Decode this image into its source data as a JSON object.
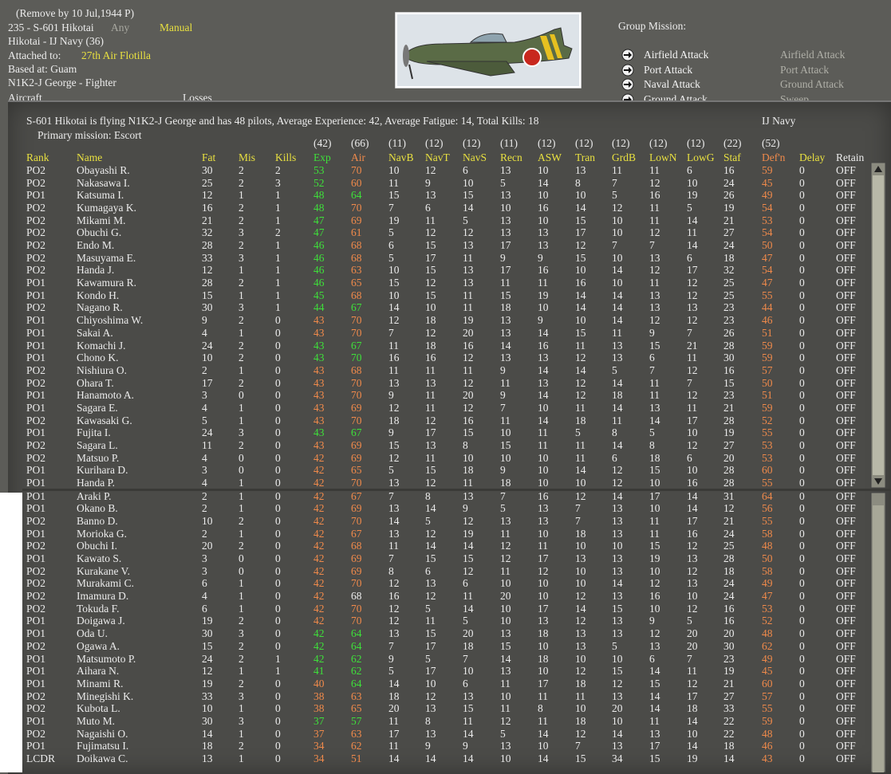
{
  "header": {
    "remove_note": "(Remove by 10 Jul,1944  P)",
    "unit_name": "235 - S-601 Hikotai",
    "mode_any": "Any",
    "mode": "Manual",
    "unit_type": "Hikotai - IJ Navy (36)",
    "attached_label": "Attached to:",
    "attached_value": "27th Air Flotilla",
    "based_at": "Based at: Guam",
    "aircraft": "N1K2-J George - Fighter",
    "aircraft_col": "Aircraft",
    "losses_col": "Losses"
  },
  "group_mission": {
    "title": "Group Mission:",
    "options": [
      "Airfield Attack",
      "Port Attack",
      "Naval Attack",
      "Ground Attack"
    ],
    "alternates": [
      "Airfield Attack",
      "Port Attack",
      "Ground Attack",
      "Sweep"
    ]
  },
  "summary": {
    "text": "S-601 Hikotai is flying N1K2-J George and has 48 pilots,  Average Experience: 42,  Average Fatigue: 14,  Total Kills: 18",
    "nation": "IJ Navy",
    "primary_mission": "Primary mission: Escort"
  },
  "table": {
    "averages": [
      null,
      null,
      null,
      null,
      null,
      "(42)",
      "(66)",
      "(11)",
      "(12)",
      "(12)",
      "(11)",
      "(12)",
      "(12)",
      "(12)",
      "(12)",
      "(12)",
      "(22)",
      "(52)",
      null,
      null
    ],
    "columns": [
      "Rank",
      "Name",
      "Fat",
      "Mis",
      "Kills",
      "Exp",
      "Air",
      "NavB",
      "NavT",
      "NavS",
      "Recn",
      "ASW",
      "Tran",
      "GrdB",
      "LowN",
      "LowG",
      "Staf",
      "Def'n",
      "Delay",
      "Retain"
    ],
    "palette": {
      "g": "#3ee03a",
      "o": "#f08a4b",
      "w": "#ececec",
      "y": "#e8e040"
    },
    "column_colors": [
      "y",
      "y",
      "y",
      "y",
      "y",
      "g",
      "o",
      "y",
      "y",
      "y",
      "y",
      "y",
      "y",
      "y",
      "y",
      "y",
      "y",
      "o",
      "y",
      "w"
    ],
    "exp_colors": [
      "g",
      "g",
      "g",
      "g",
      "g",
      "g",
      "g",
      "g",
      "g",
      "g",
      "g",
      "g",
      "o",
      "o",
      "g",
      "g",
      "o",
      "o",
      "o",
      "o",
      "o",
      "g",
      "o",
      "o",
      "o",
      "o",
      "o",
      "o",
      "o",
      "o",
      "o",
      "o",
      "o",
      "o",
      "o",
      "o",
      "o",
      "g",
      "g",
      "g",
      "g",
      "o",
      "o",
      "o",
      "g",
      "o",
      "o",
      "o"
    ],
    "air_colors": [
      "o",
      "o",
      "g",
      "o",
      "o",
      "o",
      "o",
      "o",
      "o",
      "o",
      "o",
      "g",
      "o",
      "o",
      "g",
      "g",
      "o",
      "o",
      "o",
      "o",
      "o",
      "g",
      "o",
      "o",
      "o",
      "o",
      "o",
      "o",
      "o",
      "o",
      "o",
      "o",
      "o",
      "o",
      "w",
      "o",
      "o",
      "g",
      "g",
      "g",
      "g",
      "g",
      "o",
      "o",
      "g",
      "o",
      "o",
      "o"
    ],
    "defn_color": "o",
    "rows": [
      [
        "PO2",
        "Obayashi R.",
        30,
        2,
        2,
        53,
        70,
        10,
        12,
        6,
        13,
        10,
        13,
        11,
        11,
        6,
        16,
        59,
        0,
        "OFF"
      ],
      [
        "PO2",
        "Nakasawa I.",
        25,
        2,
        3,
        52,
        60,
        11,
        9,
        10,
        5,
        14,
        8,
        7,
        12,
        10,
        24,
        45,
        0,
        "OFF"
      ],
      [
        "PO1",
        "Katsuma I.",
        12,
        1,
        1,
        48,
        64,
        15,
        13,
        15,
        13,
        10,
        10,
        5,
        16,
        19,
        26,
        49,
        0,
        "OFF"
      ],
      [
        "PO2",
        "Kumagaya K.",
        16,
        2,
        1,
        48,
        70,
        7,
        6,
        14,
        10,
        16,
        14,
        12,
        11,
        5,
        19,
        54,
        0,
        "OFF"
      ],
      [
        "PO2",
        "Mikami M.",
        21,
        2,
        1,
        47,
        69,
        19,
        11,
        5,
        13,
        10,
        15,
        10,
        11,
        14,
        21,
        53,
        0,
        "OFF"
      ],
      [
        "PO2",
        "Obuchi G.",
        32,
        3,
        2,
        47,
        61,
        5,
        12,
        12,
        13,
        13,
        17,
        10,
        12,
        11,
        27,
        54,
        0,
        "OFF"
      ],
      [
        "PO2",
        "Endo M.",
        28,
        2,
        1,
        46,
        68,
        6,
        15,
        13,
        17,
        13,
        12,
        7,
        7,
        14,
        24,
        50,
        0,
        "OFF"
      ],
      [
        "PO2",
        "Masuyama E.",
        33,
        3,
        1,
        46,
        68,
        5,
        17,
        11,
        9,
        9,
        15,
        10,
        13,
        6,
        18,
        47,
        0,
        "OFF"
      ],
      [
        "PO2",
        "Handa J.",
        12,
        1,
        1,
        46,
        63,
        10,
        15,
        13,
        17,
        16,
        10,
        14,
        12,
        17,
        32,
        54,
        0,
        "OFF"
      ],
      [
        "PO1",
        "Kawamura R.",
        28,
        2,
        1,
        46,
        65,
        15,
        12,
        13,
        11,
        11,
        16,
        10,
        11,
        12,
        25,
        47,
        0,
        "OFF"
      ],
      [
        "PO1",
        "Kondo H.",
        15,
        1,
        1,
        45,
        68,
        10,
        15,
        11,
        15,
        19,
        14,
        14,
        13,
        12,
        25,
        55,
        0,
        "OFF"
      ],
      [
        "PO2",
        "Nagano R.",
        30,
        3,
        1,
        44,
        67,
        14,
        10,
        11,
        18,
        10,
        14,
        14,
        13,
        13,
        23,
        44,
        0,
        "OFF"
      ],
      [
        "PO1",
        "Chiyoshima W.",
        9,
        2,
        0,
        43,
        70,
        12,
        18,
        19,
        13,
        9,
        10,
        14,
        12,
        12,
        23,
        46,
        0,
        "OFF"
      ],
      [
        "PO1",
        "Sakai A.",
        4,
        1,
        0,
        43,
        70,
        7,
        12,
        20,
        13,
        14,
        15,
        11,
        9,
        7,
        26,
        51,
        0,
        "OFF"
      ],
      [
        "PO1",
        "Komachi J.",
        24,
        2,
        0,
        43,
        67,
        11,
        18,
        16,
        14,
        16,
        11,
        13,
        15,
        21,
        28,
        59,
        0,
        "OFF"
      ],
      [
        "PO1",
        "Chono K.",
        10,
        2,
        0,
        43,
        70,
        16,
        16,
        12,
        13,
        13,
        12,
        13,
        6,
        11,
        30,
        59,
        0,
        "OFF"
      ],
      [
        "PO2",
        "Nishiura O.",
        2,
        1,
        0,
        43,
        68,
        11,
        11,
        11,
        9,
        14,
        14,
        5,
        7,
        12,
        16,
        57,
        0,
        "OFF"
      ],
      [
        "PO2",
        "Ohara T.",
        17,
        2,
        0,
        43,
        70,
        13,
        13,
        12,
        11,
        13,
        12,
        14,
        11,
        7,
        15,
        50,
        0,
        "OFF"
      ],
      [
        "PO1",
        "Hanamoto A.",
        3,
        0,
        0,
        43,
        70,
        9,
        11,
        20,
        9,
        14,
        12,
        18,
        11,
        12,
        23,
        51,
        0,
        "OFF"
      ],
      [
        "PO1",
        "Sagara E.",
        4,
        1,
        0,
        43,
        69,
        12,
        11,
        12,
        7,
        10,
        11,
        14,
        13,
        11,
        21,
        59,
        0,
        "OFF"
      ],
      [
        "PO2",
        "Kawasaki G.",
        5,
        1,
        0,
        43,
        70,
        18,
        12,
        16,
        11,
        14,
        18,
        11,
        14,
        17,
        28,
        52,
        0,
        "OFF"
      ],
      [
        "PO1",
        "Fujita I.",
        24,
        3,
        0,
        43,
        67,
        9,
        17,
        15,
        10,
        11,
        5,
        8,
        5,
        10,
        19,
        55,
        0,
        "OFF"
      ],
      [
        "PO2",
        "Sagara L.",
        11,
        2,
        0,
        43,
        69,
        15,
        13,
        8,
        15,
        11,
        11,
        14,
        8,
        12,
        27,
        53,
        0,
        "OFF"
      ],
      [
        "PO2",
        "Matsuo P.",
        4,
        0,
        0,
        42,
        69,
        12,
        11,
        10,
        10,
        10,
        11,
        6,
        18,
        6,
        20,
        53,
        0,
        "OFF"
      ],
      [
        "PO1",
        "Kurihara D.",
        3,
        0,
        0,
        42,
        65,
        5,
        15,
        18,
        9,
        10,
        14,
        12,
        15,
        10,
        28,
        60,
        0,
        "OFF"
      ],
      [
        "PO1",
        "Handa P.",
        4,
        1,
        0,
        42,
        70,
        13,
        12,
        11,
        18,
        10,
        10,
        12,
        10,
        16,
        28,
        55,
        0,
        "OFF"
      ],
      [
        "PO1",
        "Araki P.",
        2,
        1,
        0,
        42,
        67,
        7,
        8,
        13,
        7,
        16,
        12,
        14,
        17,
        14,
        31,
        64,
        0,
        "OFF"
      ],
      [
        "PO1",
        "Okano B.",
        2,
        1,
        0,
        42,
        69,
        13,
        14,
        9,
        5,
        13,
        7,
        13,
        10,
        14,
        12,
        56,
        0,
        "OFF"
      ],
      [
        "PO2",
        "Banno D.",
        10,
        2,
        0,
        42,
        70,
        14,
        5,
        12,
        13,
        13,
        7,
        13,
        11,
        17,
        21,
        55,
        0,
        "OFF"
      ],
      [
        "PO1",
        "Morioka G.",
        2,
        1,
        0,
        42,
        67,
        13,
        12,
        19,
        11,
        10,
        18,
        13,
        11,
        16,
        24,
        58,
        0,
        "OFF"
      ],
      [
        "PO2",
        "Obuchi I.",
        20,
        2,
        0,
        42,
        68,
        11,
        14,
        14,
        12,
        11,
        10,
        10,
        15,
        12,
        25,
        48,
        0,
        "OFF"
      ],
      [
        "PO1",
        "Kawato S.",
        3,
        0,
        0,
        42,
        69,
        7,
        15,
        15,
        12,
        17,
        13,
        13,
        19,
        13,
        28,
        50,
        0,
        "OFF"
      ],
      [
        "PO2",
        "Kurakane V.",
        3,
        0,
        0,
        42,
        69,
        8,
        6,
        12,
        11,
        12,
        10,
        13,
        10,
        12,
        18,
        58,
        0,
        "OFF"
      ],
      [
        "PO2",
        "Murakami C.",
        6,
        1,
        0,
        42,
        70,
        12,
        13,
        6,
        10,
        10,
        10,
        14,
        12,
        13,
        24,
        49,
        0,
        "OFF"
      ],
      [
        "PO2",
        "Imamura D.",
        4,
        1,
        0,
        42,
        68,
        16,
        12,
        11,
        20,
        10,
        12,
        13,
        16,
        10,
        24,
        47,
        0,
        "OFF"
      ],
      [
        "PO2",
        "Tokuda F.",
        6,
        1,
        0,
        42,
        70,
        12,
        5,
        14,
        10,
        17,
        14,
        15,
        10,
        12,
        16,
        53,
        0,
        "OFF"
      ],
      [
        "PO1",
        "Doigawa J.",
        19,
        2,
        0,
        42,
        70,
        12,
        11,
        5,
        10,
        13,
        12,
        13,
        9,
        5,
        16,
        52,
        0,
        "OFF"
      ],
      [
        "PO1",
        "Oda U.",
        30,
        3,
        0,
        42,
        64,
        13,
        15,
        20,
        13,
        18,
        13,
        13,
        12,
        20,
        20,
        48,
        0,
        "OFF"
      ],
      [
        "PO2",
        "Ogawa A.",
        15,
        2,
        0,
        42,
        64,
        7,
        17,
        18,
        15,
        10,
        13,
        5,
        13,
        20,
        30,
        62,
        0,
        "OFF"
      ],
      [
        "PO1",
        "Matsumoto P.",
        24,
        2,
        1,
        42,
        62,
        9,
        5,
        7,
        14,
        18,
        10,
        10,
        6,
        7,
        23,
        49,
        0,
        "OFF"
      ],
      [
        "PO1",
        "Aihara N.",
        12,
        1,
        1,
        41,
        62,
        5,
        17,
        10,
        13,
        10,
        12,
        15,
        14,
        11,
        19,
        45,
        0,
        "OFF"
      ],
      [
        "PO1",
        "Minami R.",
        19,
        2,
        0,
        40,
        64,
        14,
        10,
        6,
        11,
        17,
        18,
        12,
        15,
        12,
        21,
        60,
        0,
        "OFF"
      ],
      [
        "PO2",
        "Minegishi K.",
        33,
        3,
        0,
        38,
        63,
        18,
        12,
        13,
        10,
        11,
        11,
        13,
        14,
        17,
        27,
        57,
        0,
        "OFF"
      ],
      [
        "PO2",
        "Kubota L.",
        10,
        1,
        0,
        38,
        65,
        20,
        13,
        15,
        11,
        8,
        10,
        20,
        14,
        18,
        33,
        55,
        0,
        "OFF"
      ],
      [
        "PO1",
        "Muto M.",
        30,
        3,
        0,
        37,
        57,
        11,
        8,
        11,
        12,
        11,
        18,
        10,
        11,
        14,
        22,
        59,
        0,
        "OFF"
      ],
      [
        "PO2",
        "Nagaishi O.",
        14,
        1,
        0,
        37,
        63,
        17,
        13,
        14,
        5,
        14,
        12,
        14,
        13,
        10,
        22,
        48,
        0,
        "OFF"
      ],
      [
        "PO1",
        "Fujimatsu I.",
        18,
        2,
        0,
        34,
        62,
        11,
        9,
        9,
        13,
        10,
        7,
        13,
        17,
        14,
        18,
        46,
        0,
        "OFF"
      ],
      [
        "LCDR",
        "Doikawa C.",
        13,
        1,
        0,
        34,
        51,
        14,
        14,
        14,
        10,
        14,
        15,
        34,
        15,
        19,
        14,
        43,
        0,
        "OFF"
      ]
    ]
  }
}
